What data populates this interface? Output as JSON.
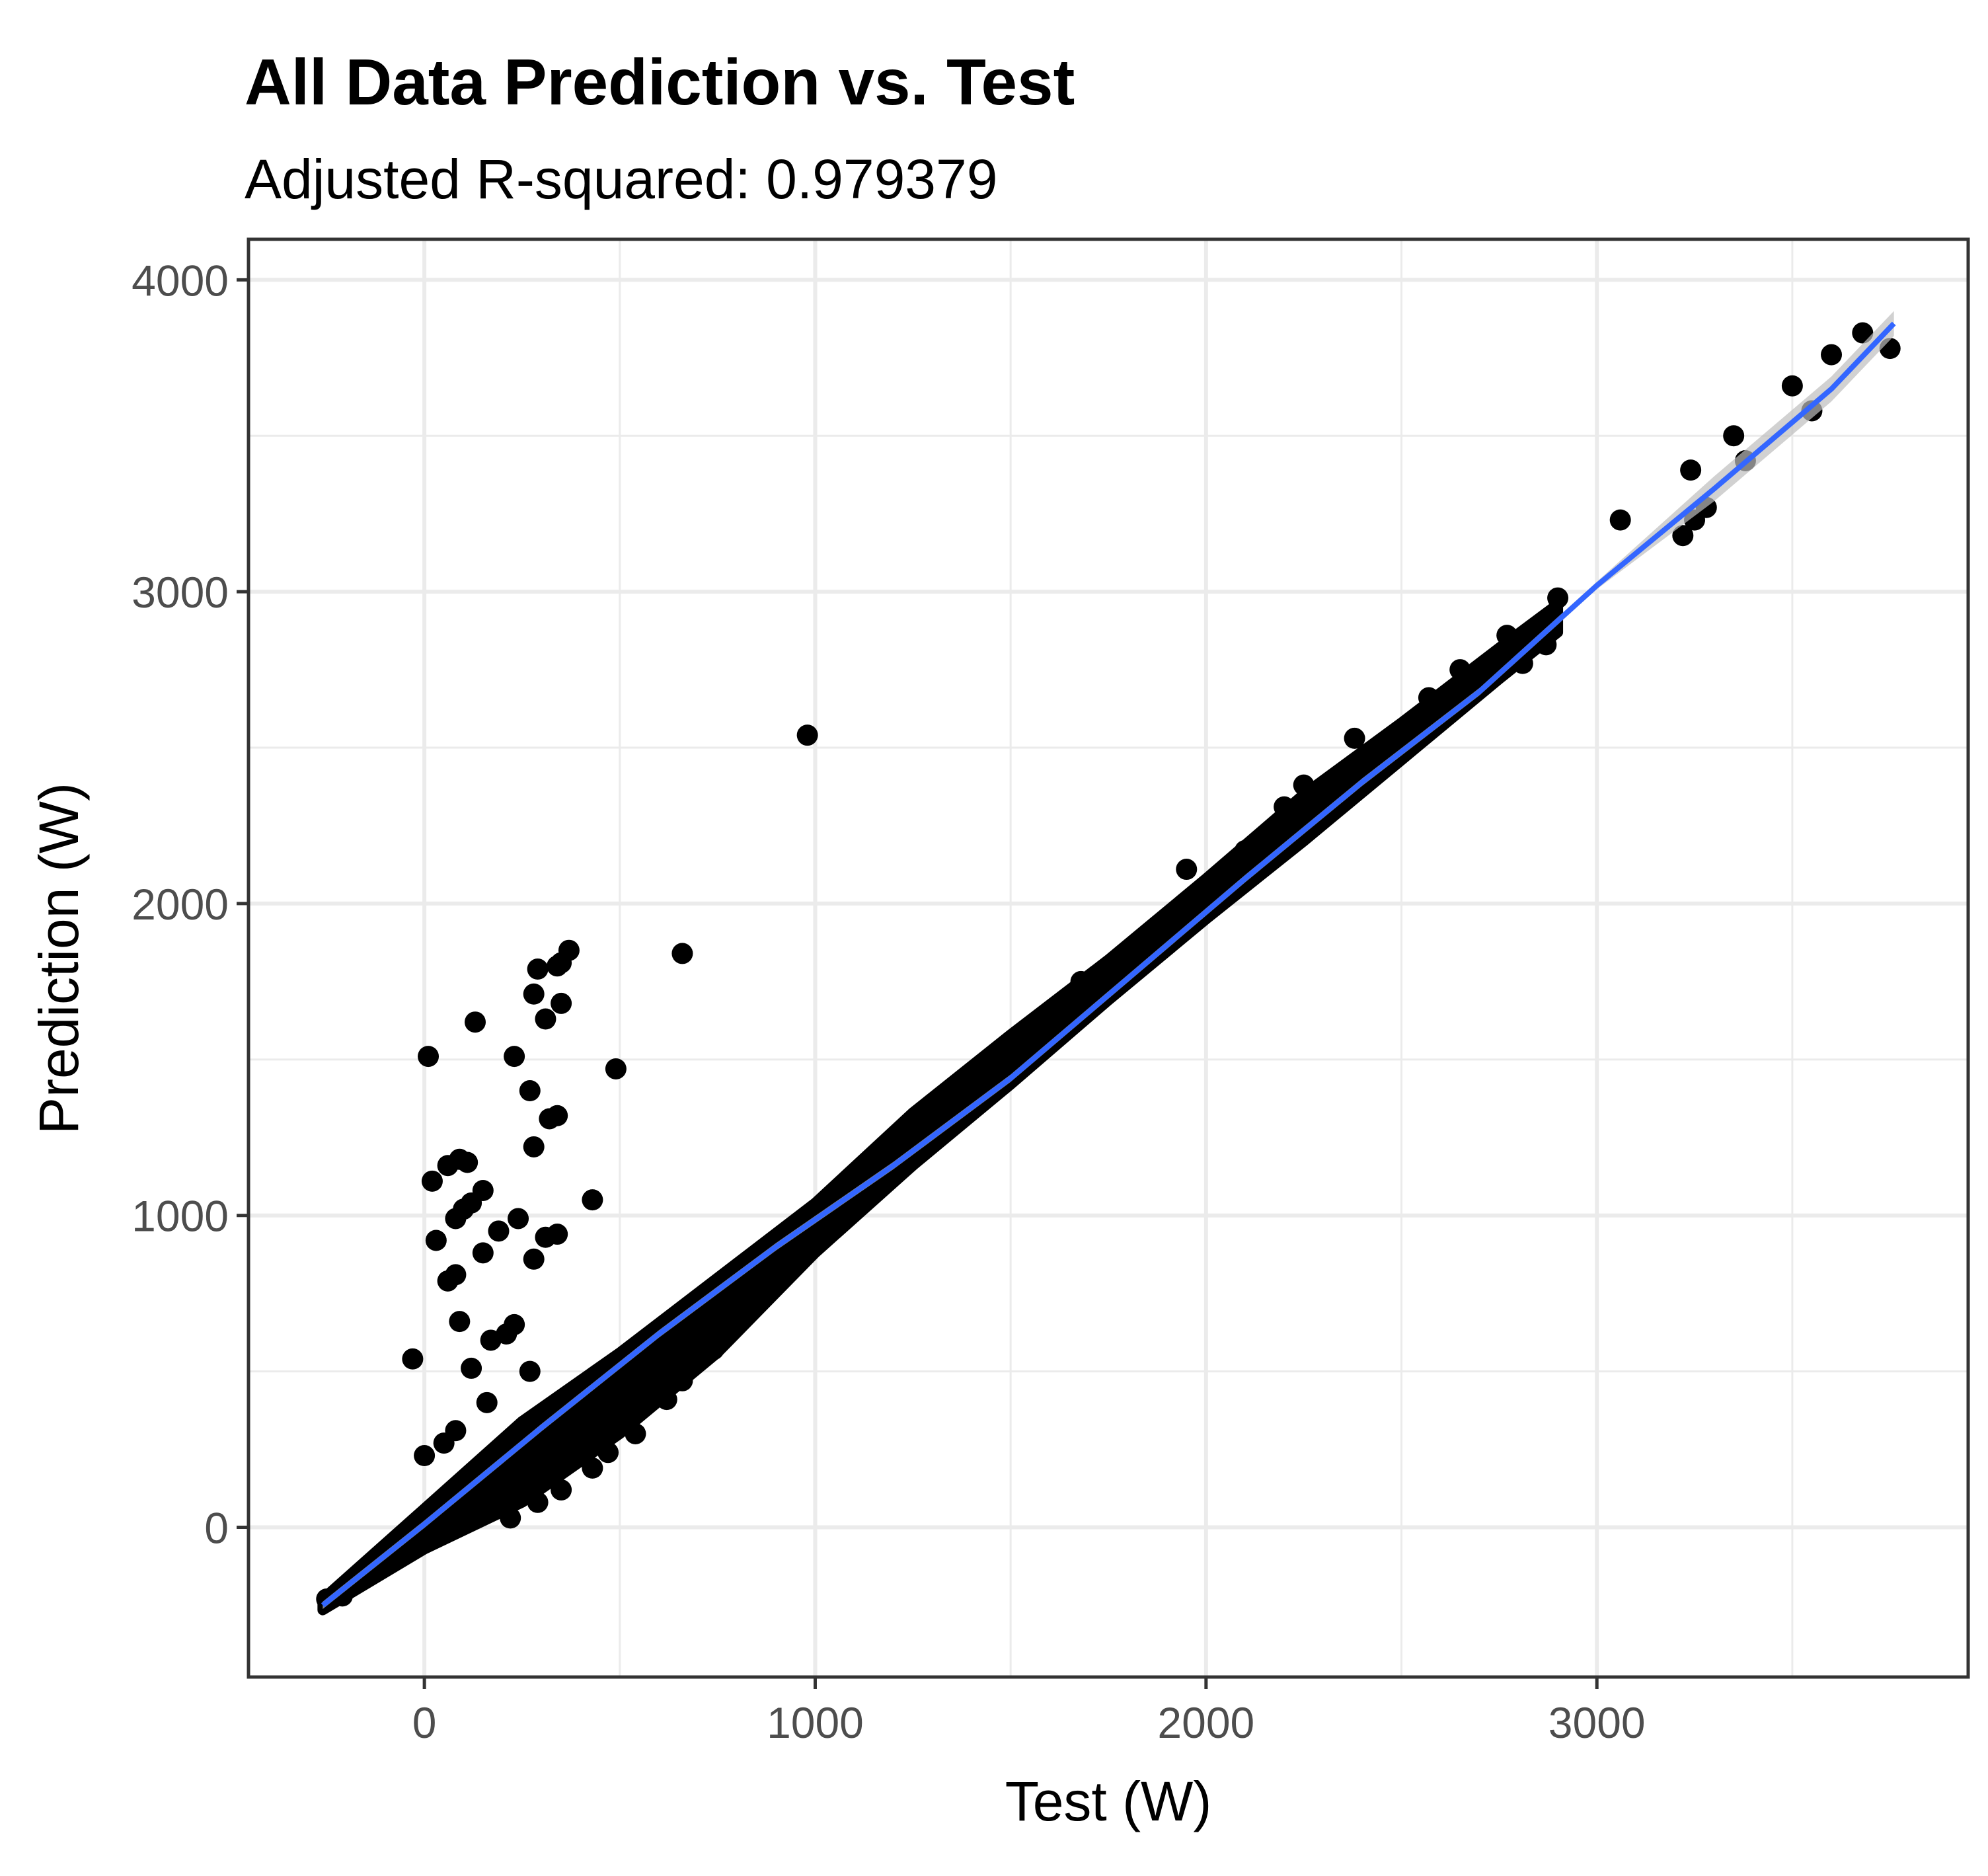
{
  "chart_data": {
    "type": "scatter",
    "title": "All Data Prediction vs. Test",
    "subtitle": "Adjusted R-squared:  0.979379",
    "xlabel": "Test (W)",
    "ylabel": "Prediction (W)",
    "xlim": [
      -450,
      3950
    ],
    "ylim": [
      -480,
      4130
    ],
    "x_ticks": [
      0,
      1000,
      2000,
      3000
    ],
    "y_ticks": [
      0,
      1000,
      2000,
      3000,
      4000
    ],
    "x_tick_labels": [
      "0",
      "1000",
      "2000",
      "3000"
    ],
    "y_tick_labels": [
      "0",
      "1000",
      "2000",
      "3000",
      "4000"
    ],
    "grid": true,
    "legend": "none",
    "point_color": "#000000",
    "line_color": "#3366ff",
    "band_color": "#bdbdbd",
    "points": [
      [
        980,
        2540
      ],
      [
        660,
        1840
      ],
      [
        490,
        1470
      ],
      [
        430,
        1050
      ],
      [
        10,
        1510
      ],
      [
        130,
        1620
      ],
      [
        230,
        1510
      ],
      [
        280,
        1710
      ],
      [
        290,
        1790
      ],
      [
        350,
        1810
      ],
      [
        370,
        1850
      ],
      [
        340,
        1800
      ],
      [
        310,
        1630
      ],
      [
        350,
        1680
      ],
      [
        270,
        1400
      ],
      [
        320,
        1310
      ],
      [
        340,
        1320
      ],
      [
        280,
        1220
      ],
      [
        20,
        1110
      ],
      [
        60,
        1160
      ],
      [
        90,
        1180
      ],
      [
        110,
        1170
      ],
      [
        80,
        990
      ],
      [
        100,
        1020
      ],
      [
        120,
        1040
      ],
      [
        150,
        1080
      ],
      [
        30,
        920
      ],
      [
        60,
        790
      ],
      [
        80,
        810
      ],
      [
        150,
        880
      ],
      [
        190,
        950
      ],
      [
        240,
        990
      ],
      [
        310,
        930
      ],
      [
        340,
        940
      ],
      [
        280,
        860
      ],
      [
        90,
        660
      ],
      [
        170,
        600
      ],
      [
        210,
        620
      ],
      [
        230,
        650
      ],
      [
        120,
        510
      ],
      [
        270,
        500
      ],
      [
        -30,
        540
      ],
      [
        160,
        400
      ],
      [
        0,
        230
      ],
      [
        50,
        270
      ],
      [
        80,
        310
      ],
      [
        740,
        570
      ],
      [
        660,
        470
      ],
      [
        700,
        600
      ],
      [
        620,
        410
      ],
      [
        540,
        300
      ],
      [
        470,
        240
      ],
      [
        430,
        190
      ],
      [
        350,
        120
      ],
      [
        290,
        80
      ],
      [
        220,
        30
      ],
      [
        -250,
        -230
      ],
      [
        -210,
        -220
      ],
      [
        1680,
        1750
      ],
      [
        1850,
        1860
      ],
      [
        1950,
        2110
      ],
      [
        2100,
        2170
      ],
      [
        2200,
        2310
      ],
      [
        2250,
        2380
      ],
      [
        2380,
        2530
      ],
      [
        2570,
        2660
      ],
      [
        2650,
        2750
      ],
      [
        2770,
        2860
      ],
      [
        2810,
        2770
      ],
      [
        2900,
        2980
      ],
      [
        2870,
        2830
      ],
      [
        3060,
        3230
      ],
      [
        3220,
        3180
      ],
      [
        3250,
        3230
      ],
      [
        3240,
        3390
      ],
      [
        3280,
        3270
      ],
      [
        3350,
        3500
      ],
      [
        3380,
        3420
      ],
      [
        3500,
        3660
      ],
      [
        3550,
        3580
      ],
      [
        3600,
        3760
      ],
      [
        3750,
        3780
      ],
      [
        3680,
        3830
      ]
    ],
    "dense_band": {
      "x": [
        -260,
        0,
        250,
        500,
        750,
        1000,
        1250,
        1500,
        1750,
        2000,
        2250,
        2500,
        2750,
        2900
      ],
      "center": [
        -250,
        0,
        250,
        490,
        730,
        970,
        1230,
        1480,
        1740,
        2000,
        2250,
        2500,
        2760,
        2910
      ],
      "upper": [
        -230,
        60,
        340,
        560,
        800,
        1040,
        1330,
        1580,
        1820,
        2080,
        2350,
        2580,
        2820,
        2960
      ],
      "lower": [
        -265,
        -70,
        80,
        300,
        560,
        880,
        1160,
        1420,
        1690,
        1950,
        2200,
        2460,
        2720,
        2870
      ]
    },
    "fit_line": {
      "x": [
        -260,
        0,
        300,
        600,
        900,
        1200,
        1500,
        1800,
        2100,
        2400,
        2700,
        3000,
        3300,
        3600,
        3760
      ],
      "y": [
        -250,
        10,
        320,
        620,
        900,
        1160,
        1440,
        1760,
        2080,
        2390,
        2680,
        3020,
        3330,
        3650,
        3860
      ]
    }
  }
}
